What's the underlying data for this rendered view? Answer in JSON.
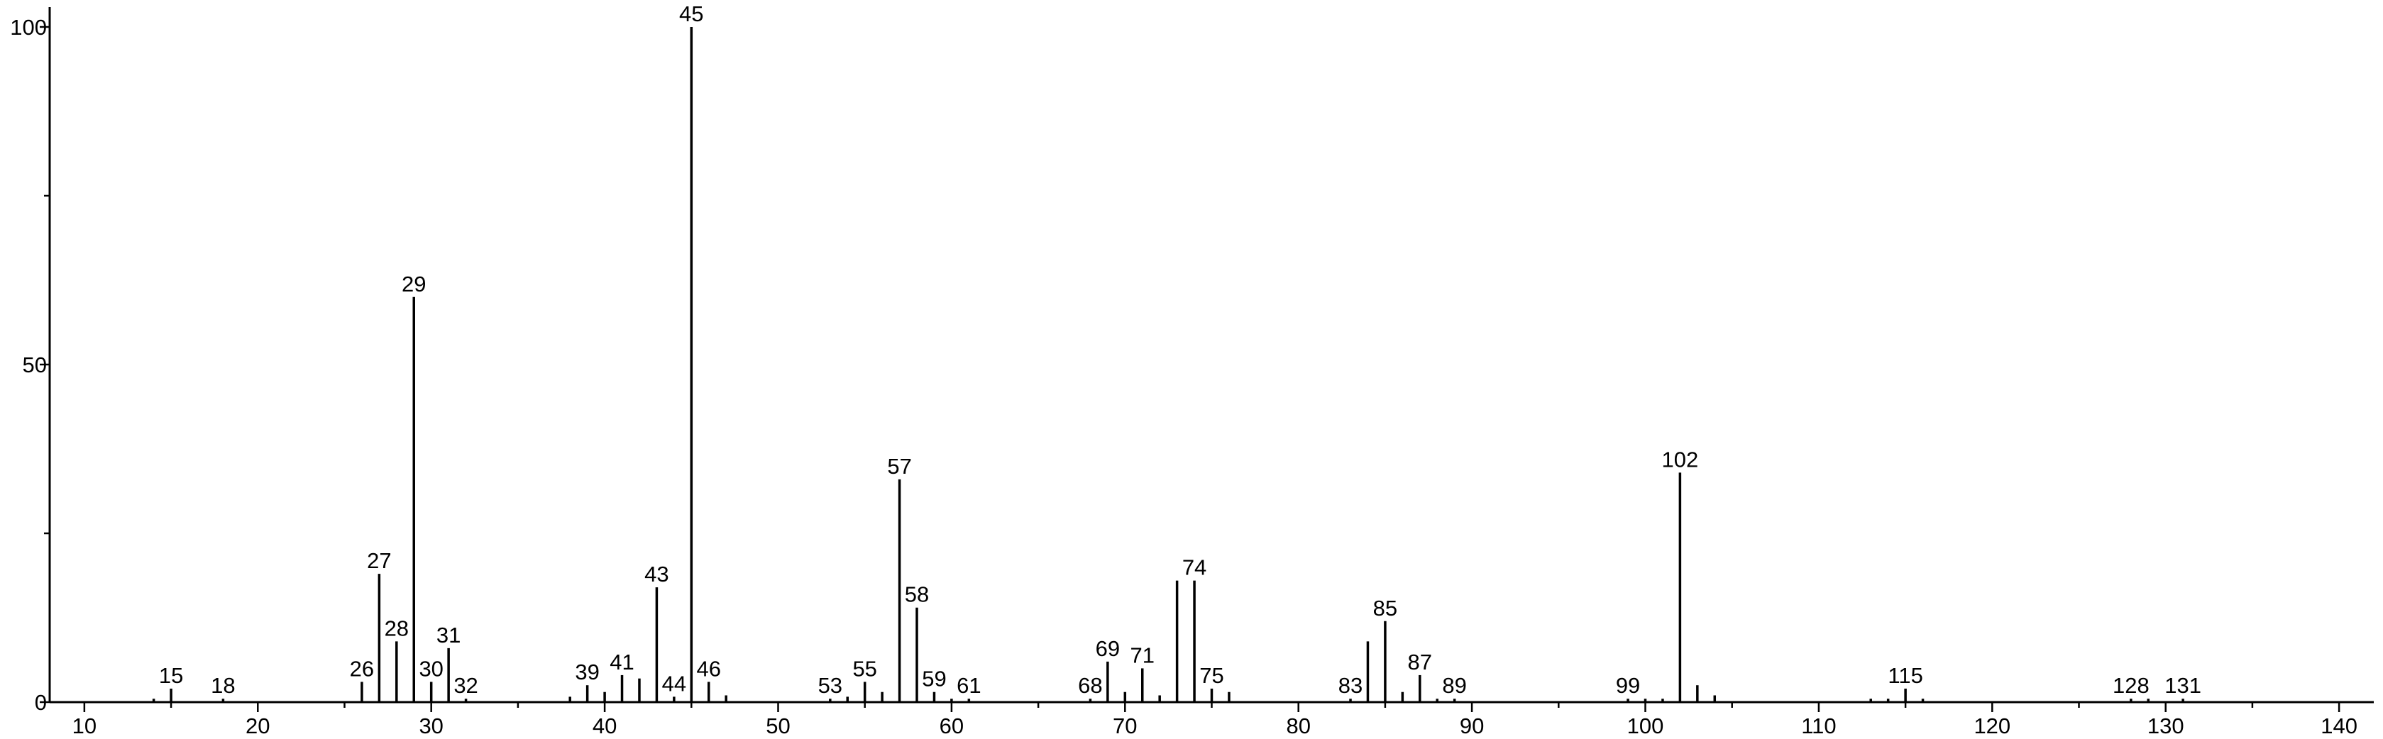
{
  "chart_data": {
    "type": "bar",
    "xlim": [
      8,
      142
    ],
    "ylim": [
      0,
      100
    ],
    "x_ticks": [
      10,
      20,
      30,
      40,
      50,
      60,
      70,
      80,
      90,
      100,
      110,
      120,
      130,
      140
    ],
    "y_ticks": [
      0,
      50,
      100
    ],
    "grid": false,
    "peaks": [
      {
        "x": 14,
        "y": 0.5
      },
      {
        "x": 15,
        "y": 2,
        "label": "15"
      },
      {
        "x": 18,
        "y": 0.5,
        "label": "18"
      },
      {
        "x": 26,
        "y": 3,
        "label": "26"
      },
      {
        "x": 27,
        "y": 19,
        "label": "27"
      },
      {
        "x": 28,
        "y": 9,
        "label": "28"
      },
      {
        "x": 29,
        "y": 60,
        "label": "29"
      },
      {
        "x": 30,
        "y": 3,
        "label": "30"
      },
      {
        "x": 31,
        "y": 8,
        "label": "31"
      },
      {
        "x": 32,
        "y": 0.5,
        "label": "32"
      },
      {
        "x": 38,
        "y": 0.8
      },
      {
        "x": 39,
        "y": 2.5,
        "label": "39"
      },
      {
        "x": 40,
        "y": 1.5
      },
      {
        "x": 41,
        "y": 4,
        "label": "41"
      },
      {
        "x": 42,
        "y": 3.5
      },
      {
        "x": 43,
        "y": 17,
        "label": "43"
      },
      {
        "x": 44,
        "y": 0.8,
        "label": "44"
      },
      {
        "x": 45,
        "y": 100,
        "label": "45"
      },
      {
        "x": 46,
        "y": 3,
        "label": "46"
      },
      {
        "x": 47,
        "y": 1
      },
      {
        "x": 53,
        "y": 0.5,
        "label": "53"
      },
      {
        "x": 54,
        "y": 0.8
      },
      {
        "x": 55,
        "y": 3,
        "label": "55"
      },
      {
        "x": 56,
        "y": 1.5
      },
      {
        "x": 57,
        "y": 33,
        "label": "57"
      },
      {
        "x": 58,
        "y": 14,
        "label": "58"
      },
      {
        "x": 59,
        "y": 1.5,
        "label": "59"
      },
      {
        "x": 60,
        "y": 0.5
      },
      {
        "x": 61,
        "y": 0.5,
        "label": "61"
      },
      {
        "x": 68,
        "y": 0.5,
        "label": "68"
      },
      {
        "x": 69,
        "y": 6,
        "label": "69"
      },
      {
        "x": 70,
        "y": 1.5
      },
      {
        "x": 71,
        "y": 5,
        "label": "71"
      },
      {
        "x": 72,
        "y": 1
      },
      {
        "x": 73,
        "y": 18
      },
      {
        "x": 74,
        "y": 18,
        "label": "74"
      },
      {
        "x": 75,
        "y": 2,
        "label": "75"
      },
      {
        "x": 76,
        "y": 1.5
      },
      {
        "x": 83,
        "y": 0.5,
        "label": "83"
      },
      {
        "x": 84,
        "y": 9
      },
      {
        "x": 85,
        "y": 12,
        "label": "85"
      },
      {
        "x": 86,
        "y": 1.5
      },
      {
        "x": 87,
        "y": 4,
        "label": "87"
      },
      {
        "x": 88,
        "y": 0.5
      },
      {
        "x": 89,
        "y": 0.5,
        "label": "89"
      },
      {
        "x": 99,
        "y": 0.5,
        "label": "99"
      },
      {
        "x": 100,
        "y": 0.5
      },
      {
        "x": 101,
        "y": 0.5
      },
      {
        "x": 102,
        "y": 34,
        "label": "102"
      },
      {
        "x": 103,
        "y": 2.5
      },
      {
        "x": 104,
        "y": 1
      },
      {
        "x": 113,
        "y": 0.5
      },
      {
        "x": 114,
        "y": 0.5
      },
      {
        "x": 115,
        "y": 2,
        "label": "115"
      },
      {
        "x": 116,
        "y": 0.5
      },
      {
        "x": 128,
        "y": 0.5,
        "label": "128"
      },
      {
        "x": 129,
        "y": 0.5
      },
      {
        "x": 131,
        "y": 0.5,
        "label": "131"
      }
    ]
  }
}
